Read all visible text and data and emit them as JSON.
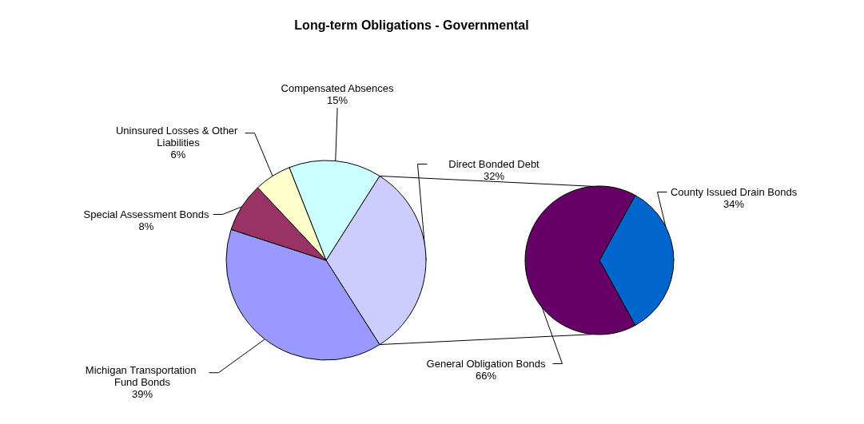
{
  "chart_data": [
    {
      "type": "pie",
      "title": "Long-term Obligations - Governmental",
      "categories": [
        "Direct Bonded Debt",
        "Michigan Transportation Fund Bonds",
        "Special Assessment Bonds",
        "Uninsured Losses & Other Liabilities",
        "Compensated Absences"
      ],
      "values": [
        32,
        39,
        8,
        6,
        15
      ],
      "value_labels": [
        "32%",
        "39%",
        "8%",
        "6%",
        "15%"
      ],
      "colors": [
        "#ccccff",
        "#9999ff",
        "#993366",
        "#ffffcc",
        "#ccffff"
      ]
    },
    {
      "type": "pie",
      "categories": [
        "County Issued Drain Bonds",
        "General Obligation Bonds"
      ],
      "values": [
        34,
        66
      ],
      "value_labels": [
        "34%",
        "66%"
      ],
      "colors": [
        "#0066cc",
        "#660066"
      ]
    }
  ]
}
